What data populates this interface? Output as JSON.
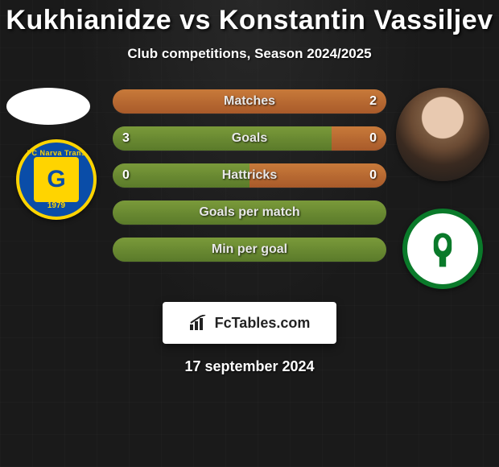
{
  "title": "Kukhianidze vs Konstantin Vassiljev",
  "subtitle": "Club competitions, Season 2024/2025",
  "footer_brand": "FcTables.com",
  "footer_date": "17 september 2024",
  "colors": {
    "left_fill": "#6a8a2f",
    "right_fill": "#b86a2f",
    "track": "#303030",
    "title_text": "#ffffff"
  },
  "club_left": {
    "name": "FC Narva Trans",
    "year": "1979",
    "letter": "G",
    "ring_color": "#ffd400",
    "bg_color": "#0a4da8"
  },
  "club_right": {
    "name": "FC Flora",
    "ring_color": "#0a7a2a",
    "bg_color": "#ffffff"
  },
  "bars": [
    {
      "label": "Matches",
      "left": "",
      "right": "2",
      "left_pct": 0,
      "right_pct": 100
    },
    {
      "label": "Goals",
      "left": "3",
      "right": "0",
      "left_pct": 80,
      "right_pct": 20
    },
    {
      "label": "Hattricks",
      "left": "0",
      "right": "0",
      "left_pct": 50,
      "right_pct": 50
    },
    {
      "label": "Goals per match",
      "left": "",
      "right": "",
      "left_pct": 100,
      "right_pct": 0
    },
    {
      "label": "Min per goal",
      "left": "",
      "right": "",
      "left_pct": 100,
      "right_pct": 0
    }
  ]
}
